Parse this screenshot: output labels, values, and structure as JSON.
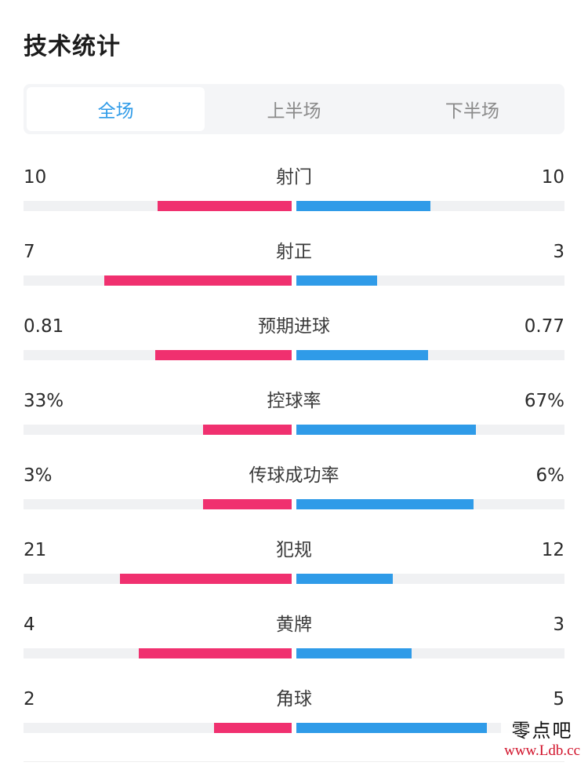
{
  "title": "技术统计",
  "tabs": [
    {
      "label": "全场",
      "active": true
    },
    {
      "label": "上半场",
      "active": false
    },
    {
      "label": "下半场",
      "active": false
    }
  ],
  "colors": {
    "home": "#f0306f",
    "away": "#2f9be8",
    "track": "#f0f1f3",
    "active_tab": "#2f9be8"
  },
  "stats": [
    {
      "label": "射门",
      "left": "10",
      "right": "10",
      "left_fraction": 0.5,
      "right_fraction": 0.5
    },
    {
      "label": "射正",
      "left": "7",
      "right": "3",
      "left_fraction": 0.7,
      "right_fraction": 0.3
    },
    {
      "label": "预期进球",
      "left": "0.81",
      "right": "0.77",
      "left_fraction": 0.51,
      "right_fraction": 0.49
    },
    {
      "label": "控球率",
      "left": "33%",
      "right": "67%",
      "left_fraction": 0.33,
      "right_fraction": 0.67
    },
    {
      "label": "传球成功率",
      "left": "3%",
      "right": "6%",
      "left_fraction": 0.33,
      "right_fraction": 0.66
    },
    {
      "label": "犯规",
      "left": "21",
      "right": "12",
      "left_fraction": 0.64,
      "right_fraction": 0.36
    },
    {
      "label": "黄牌",
      "left": "4",
      "right": "3",
      "left_fraction": 0.57,
      "right_fraction": 0.43
    },
    {
      "label": "角球",
      "left": "2",
      "right": "5",
      "left_fraction": 0.29,
      "right_fraction": 0.71
    }
  ],
  "watermark": {
    "name": "零点吧",
    "url": "www.Ldb.cc"
  }
}
